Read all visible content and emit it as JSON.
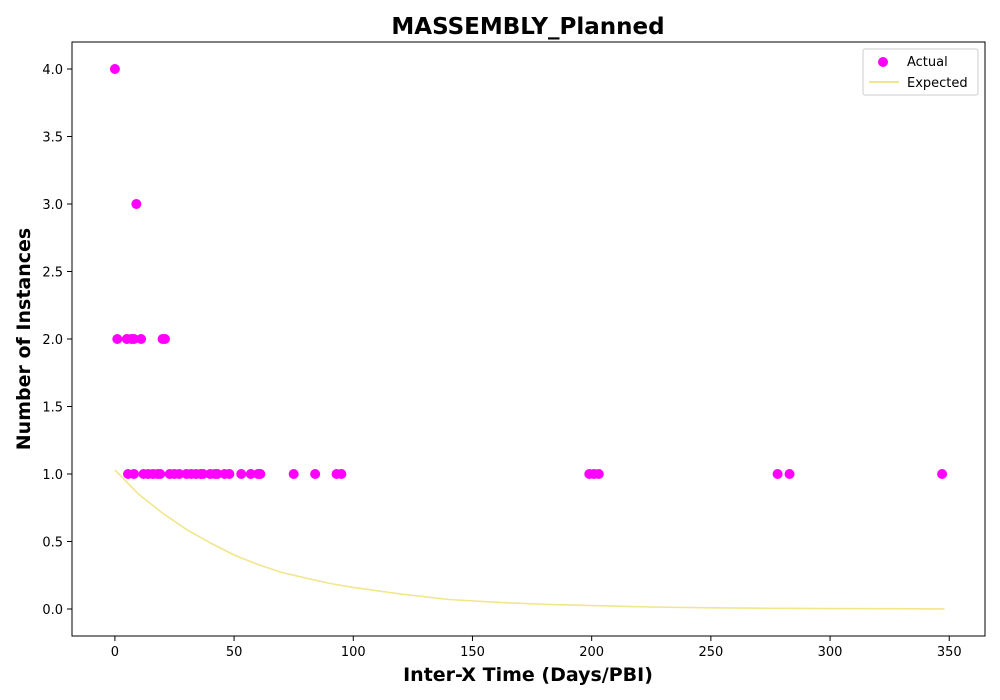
{
  "chart_data": {
    "type": "scatter",
    "title": "MASSEMBLY_Planned",
    "xlabel": "Inter-X Time (Days/PBI)",
    "ylabel": "Number of Instances",
    "xlim": [
      -18,
      365
    ],
    "ylim": [
      -0.2,
      4.2
    ],
    "xticks": [
      0,
      50,
      100,
      150,
      200,
      250,
      300,
      350
    ],
    "yticks": [
      0.0,
      0.5,
      1.0,
      1.5,
      2.0,
      2.5,
      3.0,
      3.5,
      4.0
    ],
    "xtick_labels": [
      "0",
      "50",
      "100",
      "150",
      "200",
      "250",
      "300",
      "350"
    ],
    "ytick_labels": [
      "0.0",
      "0.5",
      "1.0",
      "1.5",
      "2.0",
      "2.5",
      "3.0",
      "3.5",
      "4.0"
    ],
    "grid": false,
    "legend": {
      "placement": "top-right",
      "entries": [
        "Actual",
        "Expected"
      ]
    },
    "series": [
      {
        "name": "Actual",
        "kind": "scatter",
        "color": "#ff00ff",
        "points": [
          [
            0,
            4
          ],
          [
            9,
            3
          ],
          [
            1,
            2
          ],
          [
            5,
            2
          ],
          [
            7,
            2
          ],
          [
            8,
            2
          ],
          [
            11,
            2
          ],
          [
            20,
            2
          ],
          [
            21,
            2
          ],
          [
            5.5,
            1
          ],
          [
            8,
            1
          ],
          [
            12,
            1
          ],
          [
            14,
            1
          ],
          [
            16,
            1
          ],
          [
            18,
            1
          ],
          [
            19,
            1
          ],
          [
            23,
            1
          ],
          [
            25,
            1
          ],
          [
            27,
            1
          ],
          [
            30,
            1
          ],
          [
            32,
            1
          ],
          [
            34,
            1
          ],
          [
            36,
            1
          ],
          [
            37,
            1
          ],
          [
            40,
            1
          ],
          [
            42,
            1
          ],
          [
            43,
            1
          ],
          [
            46,
            1
          ],
          [
            48,
            1
          ],
          [
            53,
            1
          ],
          [
            57,
            1
          ],
          [
            60,
            1
          ],
          [
            61,
            1
          ],
          [
            75,
            1
          ],
          [
            84,
            1
          ],
          [
            93,
            1
          ],
          [
            95,
            1
          ],
          [
            199,
            1
          ],
          [
            201,
            1
          ],
          [
            203,
            1
          ],
          [
            278,
            1
          ],
          [
            283,
            1
          ],
          [
            347,
            1
          ]
        ]
      },
      {
        "name": "Expected",
        "kind": "line",
        "color": "#f0e68c",
        "x": [
          0,
          10,
          20,
          30,
          40,
          50,
          60,
          70,
          80,
          90,
          100,
          120,
          140,
          160,
          180,
          200,
          225,
          250,
          275,
          300,
          325,
          348
        ],
        "y": [
          1.03,
          0.85,
          0.71,
          0.59,
          0.49,
          0.4,
          0.33,
          0.27,
          0.23,
          0.19,
          0.16,
          0.11,
          0.07,
          0.05,
          0.035,
          0.025,
          0.015,
          0.009,
          0.005,
          0.003,
          0.002,
          0.001
        ]
      }
    ]
  }
}
